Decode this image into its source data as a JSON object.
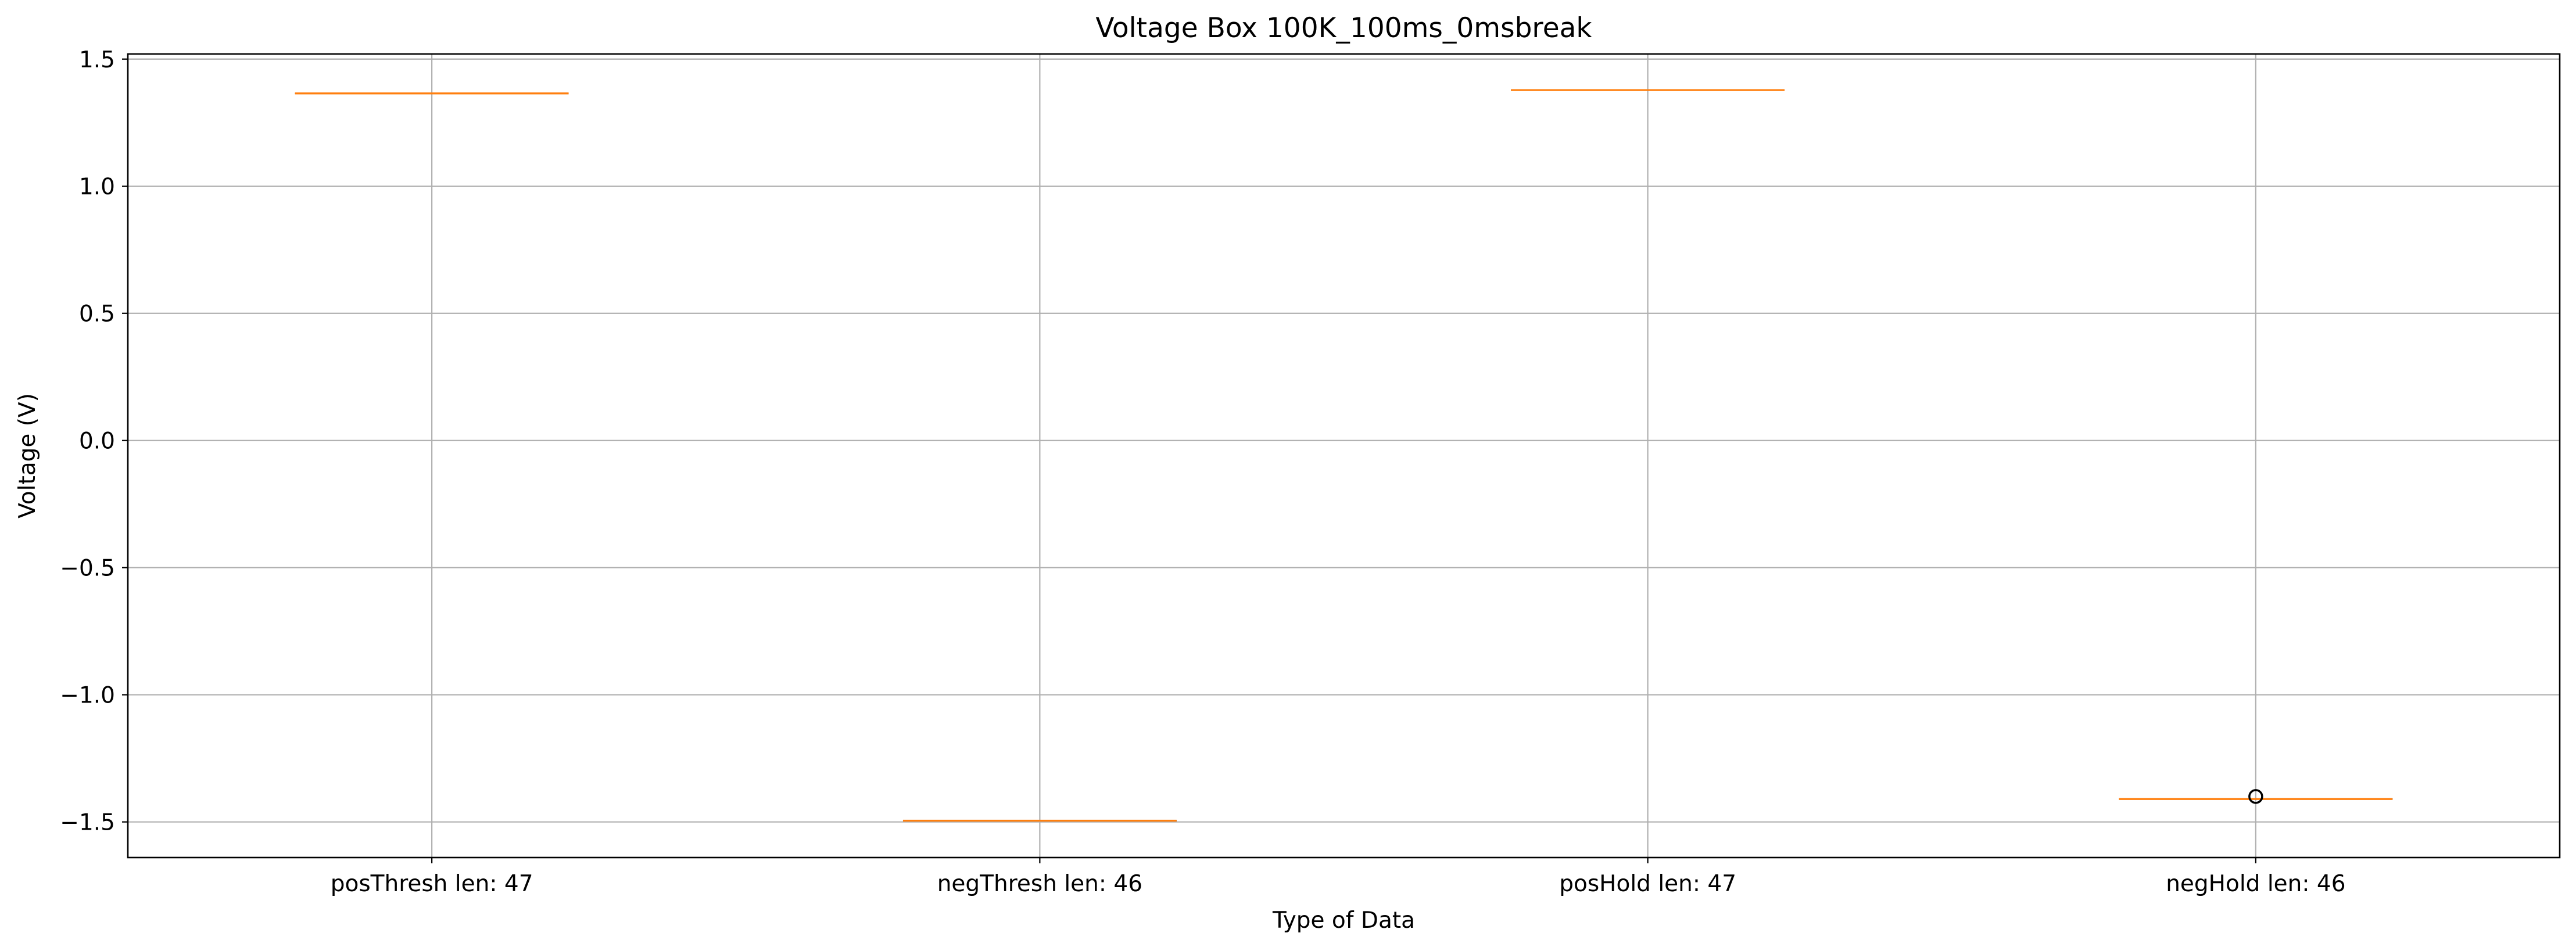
{
  "chart_data": {
    "type": "box",
    "title": "Voltage Box 100K_100ms_0msbreak",
    "xlabel": "Type of Data",
    "ylabel": "Voltage (V)",
    "ylim": [
      -1.64,
      1.52
    ],
    "yticks": [
      1.5,
      1.0,
      0.5,
      0.0,
      -0.5,
      -1.0,
      -1.5
    ],
    "ytick_labels": [
      "1.5",
      "1.0",
      "0.5",
      "0.0",
      "−0.5",
      "−1.0",
      "−1.5"
    ],
    "grid": true,
    "categories": [
      "posThresh len: 47",
      "negThresh len: 46",
      "posHold len: 47",
      "negHold len: 46"
    ],
    "medians": [
      1.365,
      -1.495,
      1.378,
      -1.41
    ],
    "outliers": [
      [],
      [],
      [],
      [
        -1.4
      ]
    ],
    "colors": {
      "median": "#ff7f0e",
      "grid": "#b0b0b0",
      "axes": "#000000",
      "outlier": "#000000"
    }
  }
}
